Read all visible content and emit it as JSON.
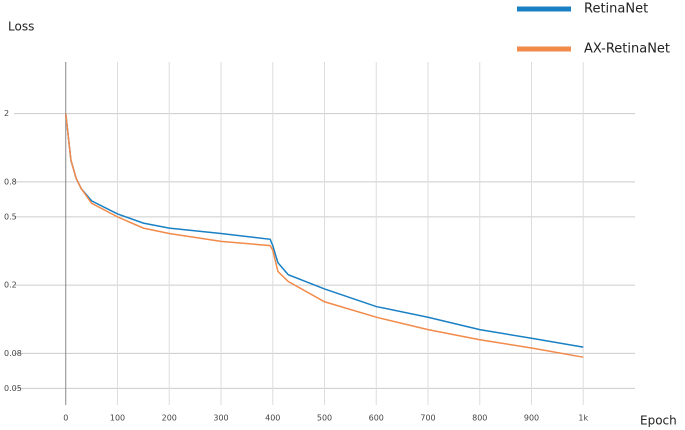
{
  "chart_data": {
    "type": "line",
    "ylabel": "Loss",
    "xlabel": "Epoch",
    "x": [
      0,
      10,
      20,
      30,
      50,
      100,
      150,
      200,
      300,
      395,
      400,
      410,
      430,
      500,
      600,
      700,
      800,
      900,
      1000
    ],
    "series": [
      {
        "name": "RetinaNet",
        "color": "#1a80c4",
        "values": [
          2,
          1.07,
          0.84,
          0.73,
          0.62,
          0.52,
          0.46,
          0.43,
          0.4,
          0.37,
          0.34,
          0.27,
          0.23,
          0.19,
          0.15,
          0.13,
          0.11,
          0.098,
          0.087
        ]
      },
      {
        "name": "AX-RetinaNet",
        "color": "#f28a4a",
        "values": [
          2,
          1.07,
          0.84,
          0.73,
          0.6,
          0.5,
          0.43,
          0.4,
          0.36,
          0.34,
          0.32,
          0.24,
          0.21,
          0.16,
          0.13,
          0.11,
          0.096,
          0.086,
          0.076
        ]
      }
    ],
    "xlim": [
      -100,
      1100
    ],
    "xticks": [
      0,
      100,
      200,
      300,
      400,
      500,
      600,
      700,
      800,
      900,
      {
        "value": 1000,
        "label": "1k"
      }
    ],
    "ylim": [
      0.04,
      4
    ],
    "yticks": [
      2,
      0.8,
      0.5,
      0.2,
      0.08,
      0.05
    ],
    "log_y": true,
    "grid": true,
    "legend": "top-right"
  }
}
